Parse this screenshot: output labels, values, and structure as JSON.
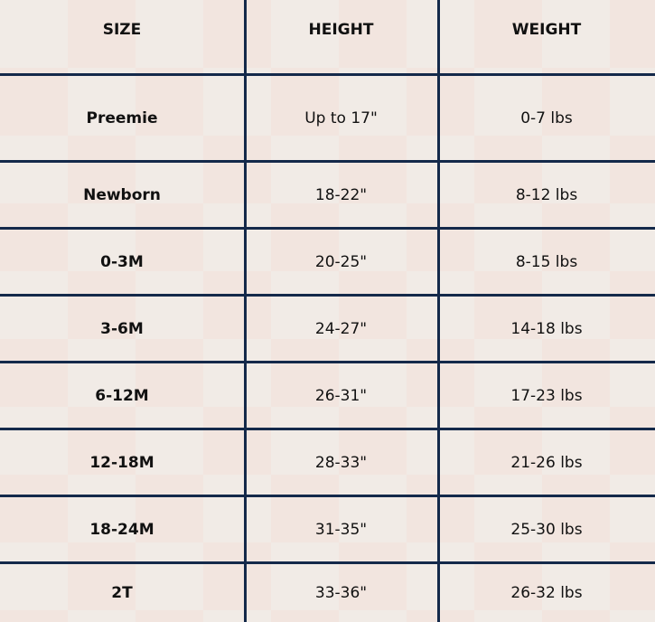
{
  "headers": {
    "size": "SIZE",
    "height": "HEIGHT",
    "weight": "WEIGHT"
  },
  "rows": [
    {
      "size": "Preemie",
      "height": "Up to 17\"",
      "weight": "0-7 lbs"
    },
    {
      "size": "Newborn",
      "height": "18-22\"",
      "weight": "8-12 lbs"
    },
    {
      "size": "0-3M",
      "height": "20-25\"",
      "weight": "8-15 lbs"
    },
    {
      "size": "3-6M",
      "height": "24-27\"",
      "weight": "14-18 lbs"
    },
    {
      "size": "6-12M",
      "height": "26-31\"",
      "weight": "17-23 lbs"
    },
    {
      "size": "12-18M",
      "height": "28-33\"",
      "weight": "21-26 lbs"
    },
    {
      "size": "18-24M",
      "height": "31-35\"",
      "weight": "25-30 lbs"
    },
    {
      "size": "2T",
      "height": "33-36\"",
      "weight": "26-32 lbs"
    }
  ],
  "colors": {
    "grid": "#14294a",
    "check_pink": "#f3e0d9",
    "check_cream": "#f1ebe6"
  }
}
